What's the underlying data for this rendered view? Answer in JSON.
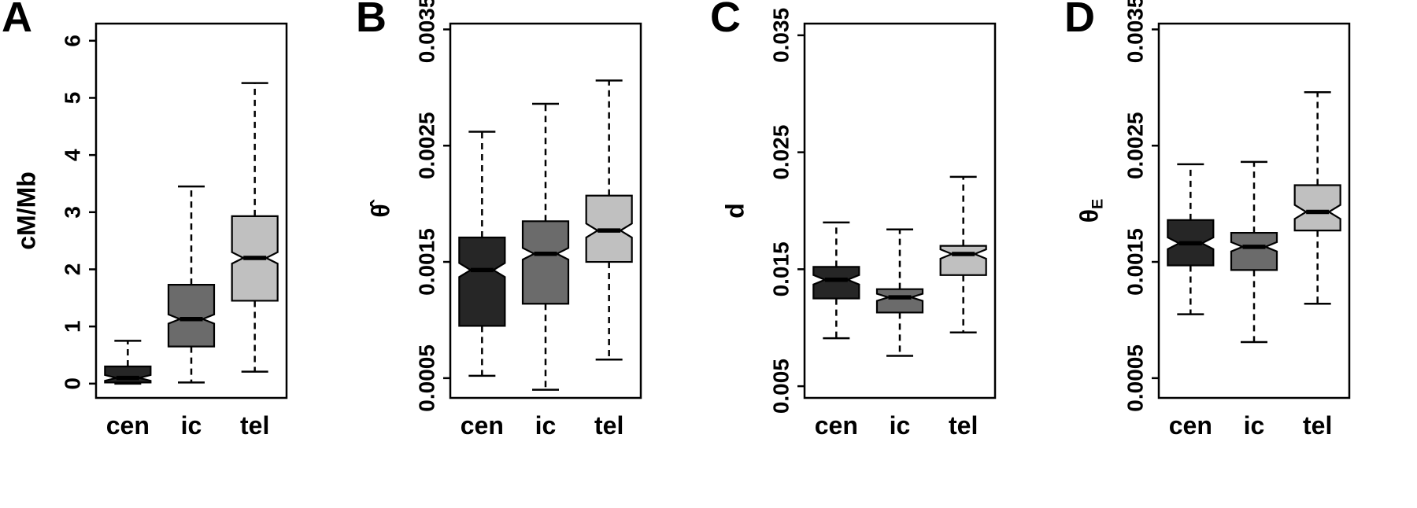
{
  "figure": {
    "background": "#ffffff",
    "box_border_color": "#000000"
  },
  "chart_data": [
    {
      "type": "box",
      "panel": "A",
      "ylabel": "cM/Mb",
      "ylabel_sub": "",
      "ylim": [
        -0.25,
        6.3
      ],
      "yticks": [
        0,
        1,
        2,
        3,
        4,
        5,
        6
      ],
      "ytick_labels": [
        "0",
        "1",
        "2",
        "3",
        "4",
        "5",
        "6"
      ],
      "categories": [
        "cen",
        "ic",
        "tel"
      ],
      "colors": [
        "#262626",
        "#6b6b6b",
        "#c0c0c0"
      ],
      "notched": true,
      "boxes": [
        {
          "group": "cen",
          "low": 0.0,
          "q1": 0.02,
          "median": 0.1,
          "q3": 0.3,
          "high": 0.75,
          "notch_low": 0.05,
          "notch_high": 0.15
        },
        {
          "group": "ic",
          "low": 0.02,
          "q1": 0.65,
          "median": 1.13,
          "q3": 1.73,
          "high": 3.45,
          "notch_low": 1.05,
          "notch_high": 1.21
        },
        {
          "group": "tel",
          "low": 0.21,
          "q1": 1.45,
          "median": 2.2,
          "q3": 2.93,
          "high": 5.26,
          "notch_low": 2.1,
          "notch_high": 2.3
        }
      ]
    },
    {
      "type": "box",
      "panel": "B",
      "ylabel": "θ̂",
      "ylabel_sub": "",
      "ylim": [
        0.00033,
        0.00355
      ],
      "yticks": [
        0.0005,
        0.0015,
        0.0025,
        0.0035
      ],
      "ytick_labels": [
        "0.0005",
        "0.0015",
        "0.0025",
        "0.0035"
      ],
      "categories": [
        "cen",
        "ic",
        "tel"
      ],
      "colors": [
        "#262626",
        "#6b6b6b",
        "#c0c0c0"
      ],
      "notched": true,
      "boxes": [
        {
          "group": "cen",
          "low": 0.00052,
          "q1": 0.00095,
          "median": 0.00143,
          "q3": 0.00171,
          "high": 0.00262,
          "notch_low": 0.00137,
          "notch_high": 0.00149
        },
        {
          "group": "ic",
          "low": 0.0004,
          "q1": 0.00114,
          "median": 0.00157,
          "q3": 0.00185,
          "high": 0.00286,
          "notch_low": 0.00152,
          "notch_high": 0.00162
        },
        {
          "group": "tel",
          "low": 0.00066,
          "q1": 0.0015,
          "median": 0.00177,
          "q3": 0.00207,
          "high": 0.00306,
          "notch_low": 0.00171,
          "notch_high": 0.00183
        }
      ]
    },
    {
      "type": "box",
      "panel": "C",
      "ylabel": "d",
      "ylabel_sub": "",
      "ylim": [
        0.004,
        0.036
      ],
      "yticks": [
        0.005,
        0.015,
        0.025,
        0.035
      ],
      "ytick_labels": [
        "0.005",
        "0.015",
        "0.025",
        "0.035"
      ],
      "categories": [
        "cen",
        "ic",
        "tel"
      ],
      "colors": [
        "#262626",
        "#6b6b6b",
        "#c0c0c0"
      ],
      "notched": true,
      "boxes": [
        {
          "group": "cen",
          "low": 0.0091,
          "q1": 0.0125,
          "median": 0.0141,
          "q3": 0.0152,
          "high": 0.019,
          "notch_low": 0.0137,
          "notch_high": 0.0145
        },
        {
          "group": "ic",
          "low": 0.0076,
          "q1": 0.0113,
          "median": 0.0126,
          "q3": 0.0133,
          "high": 0.0184,
          "notch_low": 0.0123,
          "notch_high": 0.0129
        },
        {
          "group": "tel",
          "low": 0.0096,
          "q1": 0.0145,
          "median": 0.0163,
          "q3": 0.017,
          "high": 0.0229,
          "notch_low": 0.0159,
          "notch_high": 0.0167
        }
      ]
    },
    {
      "type": "box",
      "panel": "D",
      "ylabel": "θ",
      "ylabel_sub": "E",
      "ylim": [
        0.00033,
        0.00355
      ],
      "yticks": [
        0.0005,
        0.0015,
        0.0025,
        0.0035
      ],
      "ytick_labels": [
        "0.0005",
        "0.0015",
        "0.0025",
        "0.0035"
      ],
      "categories": [
        "cen",
        "ic",
        "tel"
      ],
      "colors": [
        "#262626",
        "#6b6b6b",
        "#c0c0c0"
      ],
      "notched": true,
      "boxes": [
        {
          "group": "cen",
          "low": 0.00105,
          "q1": 0.00147,
          "median": 0.00166,
          "q3": 0.00186,
          "high": 0.00234,
          "notch_low": 0.00161,
          "notch_high": 0.00171
        },
        {
          "group": "ic",
          "low": 0.00081,
          "q1": 0.00143,
          "median": 0.00163,
          "q3": 0.00175,
          "high": 0.00236,
          "notch_low": 0.00159,
          "notch_high": 0.00167
        },
        {
          "group": "tel",
          "low": 0.00114,
          "q1": 0.00177,
          "median": 0.00193,
          "q3": 0.00216,
          "high": 0.00296,
          "notch_low": 0.00187,
          "notch_high": 0.00199
        }
      ]
    }
  ]
}
